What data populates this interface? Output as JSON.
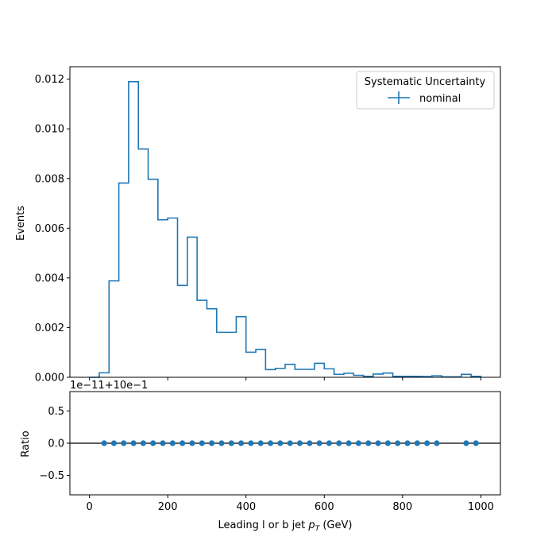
{
  "chart_data": [
    {
      "type": "histogram",
      "xlabel": "Leading l or b jet pT (GeV)",
      "xlabel_main": "Leading l or b jet ",
      "xlabel_sym": "p",
      "xlabel_sub": "T",
      "xlabel_unit": " (GeV)",
      "ylabel": "Events",
      "xlim": [
        -50,
        1050
      ],
      "ylim": [
        0,
        0.0125
      ],
      "x_ticks": [
        0,
        200,
        400,
        600,
        800,
        1000
      ],
      "y_ticks": [
        0.0,
        0.002,
        0.004,
        0.006,
        0.008,
        0.01,
        0.012
      ],
      "y_tick_labels": [
        "0.000",
        "0.002",
        "0.004",
        "0.006",
        "0.008",
        "0.010",
        "0.012"
      ],
      "grid": false,
      "legend": {
        "title": "Systematic Uncertainty",
        "position": "upper right",
        "entries": [
          {
            "label": "nominal",
            "color": "#1f77b4"
          }
        ]
      },
      "series": [
        {
          "name": "nominal",
          "color": "#1f77b4",
          "bin_edges": [
            0,
            25,
            50,
            75,
            100,
            125,
            150,
            175,
            200,
            225,
            250,
            275,
            300,
            325,
            350,
            375,
            400,
            425,
            450,
            475,
            500,
            525,
            550,
            575,
            600,
            625,
            650,
            675,
            700,
            725,
            750,
            775,
            800,
            825,
            850,
            875,
            900,
            925,
            950,
            975,
            1000
          ],
          "values": [
            0.0,
            0.00018,
            0.00388,
            0.00782,
            0.0119,
            0.00919,
            0.00797,
            0.00634,
            0.00641,
            0.0037,
            0.00564,
            0.0031,
            0.00276,
            0.00181,
            0.00181,
            0.00244,
            0.00101,
            0.00112,
            0.00031,
            0.00036,
            0.00052,
            0.00032,
            0.00032,
            0.00056,
            0.00034,
            0.00012,
            0.00016,
            8e-05,
            4e-05,
            0.00013,
            0.00017,
            4e-05,
            4e-05,
            4e-05,
            3e-05,
            6e-05,
            2e-05,
            2e-05,
            0.00012,
            4e-05
          ]
        }
      ]
    },
    {
      "type": "scatter",
      "ylabel": "Ratio",
      "offset_text": "1e−11+10e−1",
      "xlim": [
        -50,
        1050
      ],
      "ylim": [
        -0.8,
        0.8
      ],
      "x_ticks": [
        0,
        200,
        400,
        600,
        800,
        1000
      ],
      "x_tick_labels": [
        "0",
        "200",
        "400",
        "600",
        "800",
        "1000"
      ],
      "y_ticks": [
        0.5,
        0.0,
        -0.5
      ],
      "y_tick_labels": [
        "0.5",
        "0.0",
        "−0.5"
      ],
      "reference_line": 0.0,
      "series": [
        {
          "name": "nominal",
          "color": "#1f77b4",
          "x": [
            37.5,
            62.5,
            87.5,
            112.5,
            137.5,
            162.5,
            187.5,
            212.5,
            237.5,
            262.5,
            287.5,
            312.5,
            337.5,
            362.5,
            387.5,
            412.5,
            437.5,
            462.5,
            487.5,
            512.5,
            537.5,
            562.5,
            587.5,
            612.5,
            637.5,
            662.5,
            687.5,
            712.5,
            737.5,
            762.5,
            787.5,
            812.5,
            837.5,
            862.5,
            887.5,
            962.5,
            987.5
          ],
          "y": [
            0,
            0,
            0,
            0,
            0,
            0,
            0,
            0,
            0,
            0,
            0,
            0,
            0,
            0,
            0,
            0,
            0,
            0,
            0,
            0,
            0,
            0,
            0,
            0,
            0,
            0,
            0,
            0,
            0,
            0,
            0,
            0,
            0,
            0,
            0,
            0,
            0
          ]
        }
      ]
    }
  ]
}
